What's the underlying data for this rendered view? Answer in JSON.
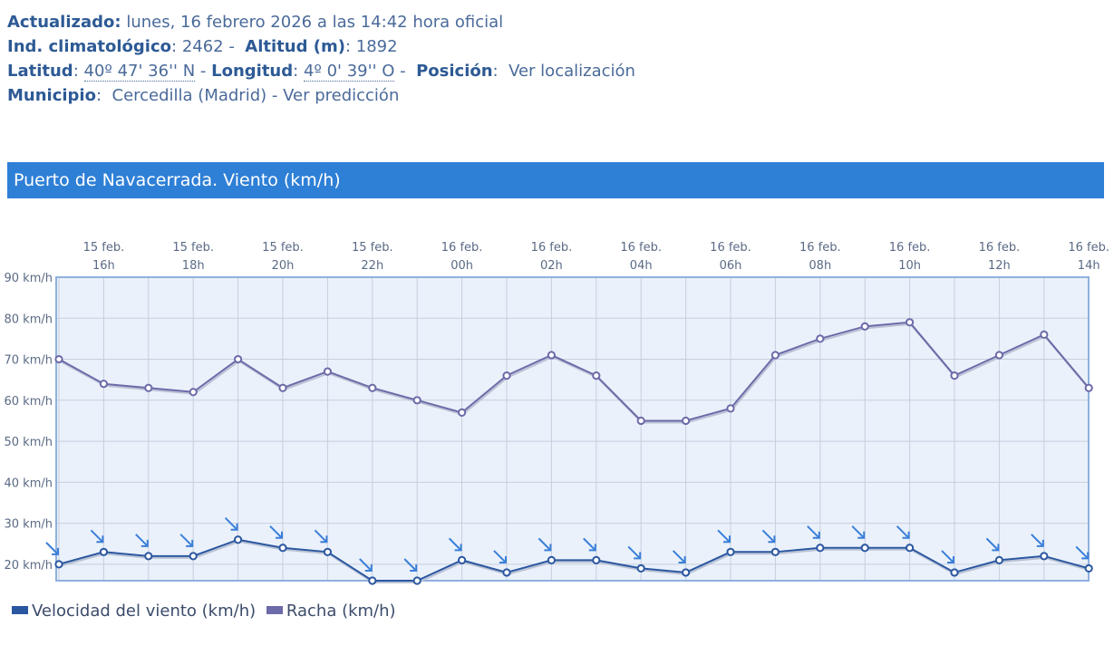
{
  "station": {
    "updated_label": "Actualizado:",
    "updated_value": "lunes, 16 febrero 2026 a las 14:42 hora oficial",
    "climatological_label": "Ind. climatológico",
    "climatological_value": "2462",
    "altitude_label": "Altitud (m)",
    "altitude_value": "1892",
    "latitude_label": "Latitud",
    "latitude_value": "40º 47' 36'' N",
    "longitude_label": "Longitud",
    "longitude_value": "4º 0' 39'' O",
    "position_label": "Posición",
    "position_link": "Ver localización",
    "municipality_label": "Municipio",
    "municipality_value": "Cercedilla (Madrid) - Ver predicción"
  },
  "panel": {
    "title": "Puerto de Navacerrada. Viento (km/h)"
  },
  "colors": {
    "wind": "#2b57a0",
    "gust": "#6c6aa8",
    "banner": "#2e7fd6",
    "arrow": "#3a7fd8"
  },
  "chart_data": {
    "type": "line",
    "title": "Puerto de Navacerrada. Viento (km/h)",
    "x": [
      "15 feb. 15h",
      "15 feb. 16h",
      "15 feb. 17h",
      "15 feb. 18h",
      "15 feb. 19h",
      "15 feb. 20h",
      "15 feb. 21h",
      "15 feb. 22h",
      "15 feb. 23h",
      "16 feb. 00h",
      "16 feb. 01h",
      "16 feb. 02h",
      "16 feb. 03h",
      "16 feb. 04h",
      "16 feb. 05h",
      "16 feb. 06h",
      "16 feb. 07h",
      "16 feb. 08h",
      "16 feb. 09h",
      "16 feb. 10h",
      "16 feb. 11h",
      "16 feb. 12h",
      "16 feb. 13h",
      "16 feb. 14h"
    ],
    "x_tick_labels": [
      {
        "index": 1,
        "line1": "15 feb.",
        "line2": "16h"
      },
      {
        "index": 3,
        "line1": "15 feb.",
        "line2": "18h"
      },
      {
        "index": 5,
        "line1": "15 feb.",
        "line2": "20h"
      },
      {
        "index": 7,
        "line1": "15 feb.",
        "line2": "22h"
      },
      {
        "index": 9,
        "line1": "16 feb.",
        "line2": "00h"
      },
      {
        "index": 11,
        "line1": "16 feb.",
        "line2": "02h"
      },
      {
        "index": 13,
        "line1": "16 feb.",
        "line2": "04h"
      },
      {
        "index": 15,
        "line1": "16 feb.",
        "line2": "06h"
      },
      {
        "index": 17,
        "line1": "16 feb.",
        "line2": "08h"
      },
      {
        "index": 19,
        "line1": "16 feb.",
        "line2": "10h"
      },
      {
        "index": 21,
        "line1": "16 feb.",
        "line2": "12h"
      },
      {
        "index": 23,
        "line1": "16 feb.",
        "line2": "14h"
      }
    ],
    "y_ticks": [
      "90 km/h",
      "80 km/h",
      "70 km/h",
      "60 km/h",
      "50 km/h",
      "40 km/h",
      "30 km/h",
      "20 km/h"
    ],
    "y_tick_values": [
      90,
      80,
      70,
      60,
      50,
      40,
      30,
      20
    ],
    "ylim": [
      16,
      90
    ],
    "series": [
      {
        "name": "Velocidad del viento (km/h)",
        "key": "wind",
        "values": [
          20,
          23,
          22,
          22,
          26,
          24,
          23,
          16,
          16,
          21,
          18,
          21,
          21,
          19,
          18,
          23,
          23,
          24,
          24,
          24,
          18,
          21,
          22,
          19
        ]
      },
      {
        "name": "Racha (km/h)",
        "key": "gust",
        "values": [
          70,
          64,
          63,
          62,
          70,
          63,
          67,
          63,
          60,
          57,
          66,
          71,
          66,
          55,
          55,
          58,
          71,
          75,
          78,
          79,
          66,
          71,
          76,
          63
        ]
      }
    ],
    "wind_direction": "NW",
    "grid": true,
    "legend_position": "bottom-left"
  }
}
